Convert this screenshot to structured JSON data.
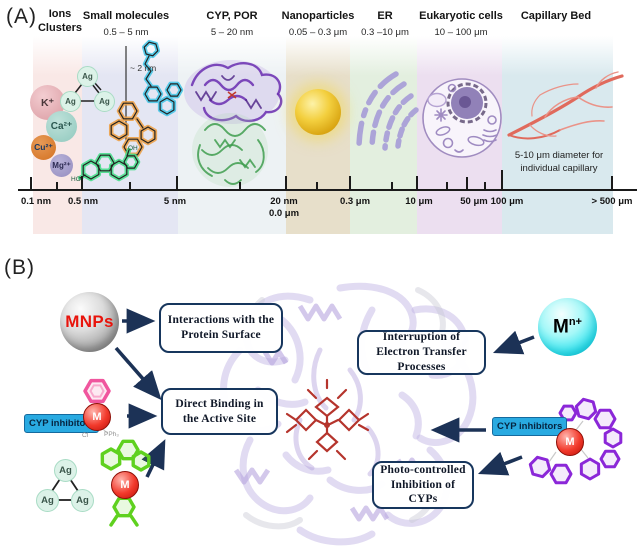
{
  "panelA": {
    "label": "(A)",
    "columns": [
      {
        "title": "Ions",
        "title2": "Clusters",
        "range": ""
      },
      {
        "title": "Small molecules",
        "title2": "",
        "range": "0.5 – 5 nm"
      },
      {
        "title": "CYP, POR",
        "title2": "",
        "range": "5 – 20 nm"
      },
      {
        "title": "Nanoparticles",
        "title2": "",
        "range": "0.05 – 0.3 μm"
      },
      {
        "title": "ER",
        "title2": "",
        "range": "0.3 –10 μm"
      },
      {
        "title": "Eukaryotic cells",
        "title2": "",
        "range": "10 – 100 μm"
      },
      {
        "title": "Capillary Bed",
        "title2": "",
        "range": ""
      }
    ],
    "ions": [
      {
        "label": "K⁺"
      },
      {
        "label": "Ca²⁺"
      },
      {
        "label": "Cu²⁺"
      },
      {
        "label": "Mg²⁺"
      }
    ],
    "silver_cluster": {
      "atoms": [
        "Ag",
        "Ag",
        "Ag"
      ]
    },
    "molecule_labels": {
      "oh": "OH",
      "ho": "HO"
    },
    "scale_marker": "~ 2 nm",
    "capillary_note": "5-10 μm diameter for individual capillary",
    "axis": {
      "ticks": [
        {
          "label": "0.1 nm"
        },
        {
          "label": "0.5 nm"
        },
        {
          "label": "5 nm"
        },
        {
          "label": "20 nm",
          "label2": "0.0 μm"
        },
        {
          "label": "0.3 μm"
        },
        {
          "label": "10 μm"
        },
        {
          "label": "50 μm"
        },
        {
          "label": "100 μm"
        },
        {
          "label": "> 500 μm"
        }
      ]
    }
  },
  "panelB": {
    "label": "(B)",
    "mnps": "MNPs",
    "metal_ion": {
      "base": "M",
      "sup": "n+"
    },
    "metal_center": "M",
    "cyp_inhibitors": "CYP inhibitors",
    "ligands": {
      "cl": "Cl",
      "pph3": "PPh₃"
    },
    "silver_cluster": {
      "atoms": [
        "Ag",
        "Ag",
        "Ag"
      ]
    },
    "boxes": {
      "protein_surface": "Interactions with the Protein Surface",
      "direct_binding": "Direct Binding in the Active Site",
      "electron_transfer": "Interruption of Electron Transfer Processes",
      "photo_controlled": "Photo-controlled Inhibition of CYPs"
    }
  },
  "colors": {
    "arrow": "#1c3256",
    "box_border": "#17365d",
    "cyp_label_bg": "#29aae1",
    "mnps_text": "#e8140c",
    "metal_sphere": "#e8302a",
    "gold_nanoparticle": "#e9b826",
    "capillary": "#e0695e"
  }
}
